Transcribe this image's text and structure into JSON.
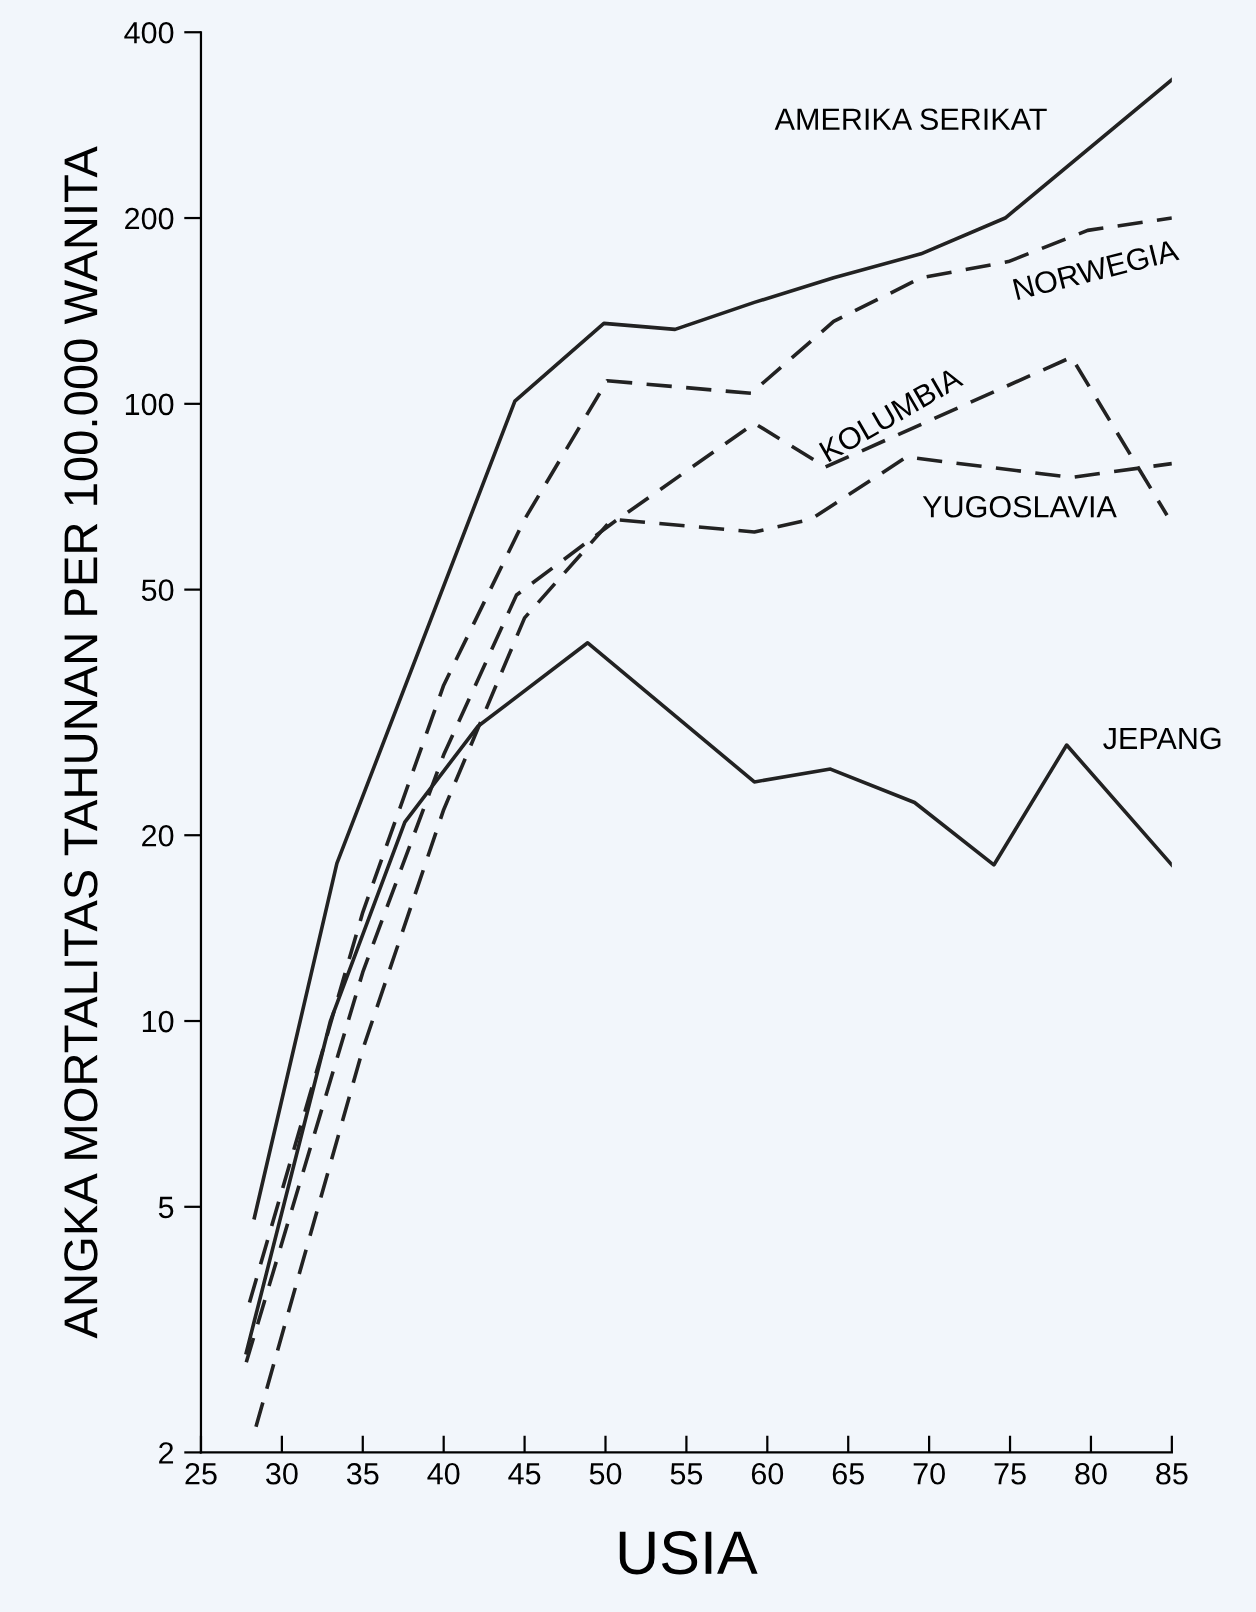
{
  "chart_data": {
    "type": "line",
    "xlabel": "USIA",
    "ylabel": "ANGKA MORTALITAS TAHUNAN PER 100.000 WANITA",
    "log": "y",
    "xlim": [
      25,
      85
    ],
    "xticks": [
      25,
      30,
      35,
      40,
      45,
      50,
      55,
      60,
      65,
      70,
      75,
      80,
      85
    ],
    "ylim": [
      2,
      400
    ],
    "yticks": [
      2,
      5,
      10,
      20,
      50,
      100,
      200,
      400
    ],
    "grid": false,
    "marker": "none",
    "series": [
      {
        "name": "AMERIKA SERIKAT",
        "color": "#222222",
        "line_style": "solid",
        "x": [
          28.3,
          33.4,
          44.4,
          49.9,
          54.3,
          59.2,
          64.1,
          69.5,
          74.7,
          85
        ],
        "values": [
          4.8,
          18,
          101,
          135,
          132,
          146,
          160,
          175,
          200,
          335
        ]
      },
      {
        "name": "NORWEGIA",
        "color": "#222222",
        "line_style": "dashed",
        "x": [
          28.0,
          35,
          40,
          45,
          50.1,
          59.0,
          64.1,
          69.5,
          74.9,
          79.8,
          85
        ],
        "values": [
          3.5,
          15,
          35,
          65,
          109,
          104,
          136,
          160,
          170,
          191,
          200
        ]
      },
      {
        "name": "KOLUMBIA",
        "color": "#222222",
        "line_style": "dashed",
        "x": [
          27.8,
          35,
          40,
          44.5,
          50.4,
          59.2,
          63.6,
          78.8,
          84.7
        ],
        "values": [
          2.8,
          12,
          27,
          49,
          64,
          93,
          79,
          119,
          66
        ]
      },
      {
        "name": "YUGOSLAVIA",
        "color": "#222222",
        "line_style": "dashed",
        "x": [
          28.4,
          35,
          40,
          45,
          50.4,
          59.2,
          62.7,
          68.6,
          78.8,
          85
        ],
        "values": [
          2.2,
          9,
          22,
          45,
          65,
          62,
          65,
          82,
          76,
          80
        ]
      },
      {
        "name": "JEPANG",
        "color": "#222222",
        "line_style": "solid",
        "x": [
          27.8,
          33,
          37.6,
          42.1,
          48.9,
          59.2,
          63.9,
          69.1,
          74,
          78.5,
          85
        ],
        "values": [
          2.9,
          10,
          21,
          30,
          41,
          24.4,
          25.6,
          22.6,
          17.9,
          28,
          17.9
        ]
      }
    ]
  }
}
